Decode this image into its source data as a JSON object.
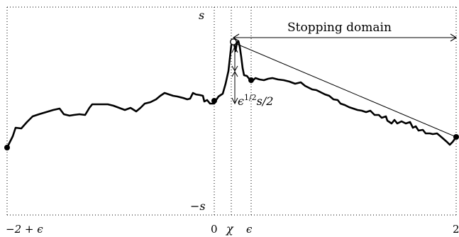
{
  "labels": {
    "s_top": "s",
    "s_bottom": "−s",
    "stopping_domain": "Stopping domain",
    "half_label": "ϵ",
    "half_exponent": "1/2",
    "half_tail": "s/2",
    "x_left": "−2 + ϵ",
    "x_zero": "0",
    "x_chi": "χ",
    "x_eps": "ϵ",
    "x_right": "2"
  },
  "colors": {
    "stroke": "#000000",
    "background": "#ffffff"
  }
}
